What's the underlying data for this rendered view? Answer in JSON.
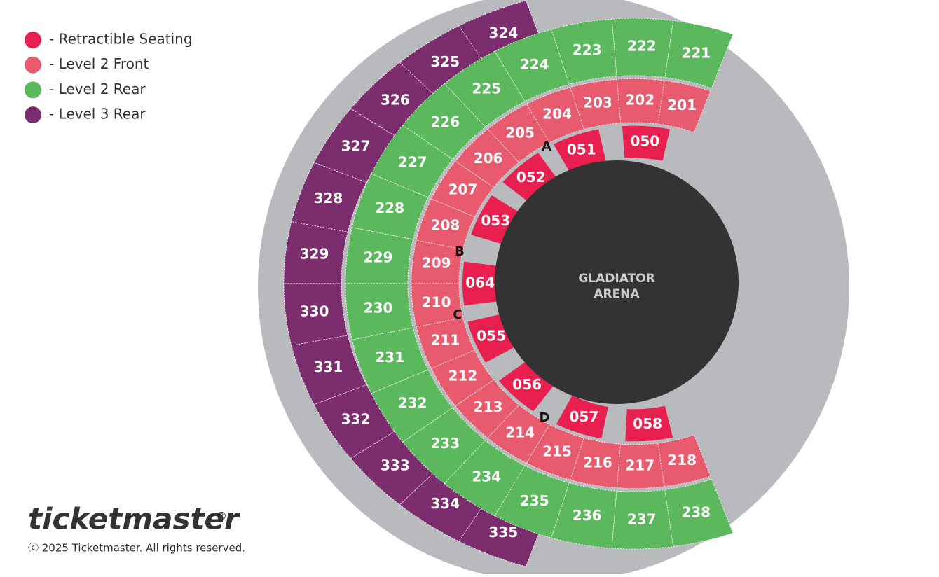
{
  "legend": [
    {
      "label": "- Retractible Seating",
      "color": "#e8204f"
    },
    {
      "label": "- Level 2 Front",
      "color": "#e85a6e"
    },
    {
      "label": "- Level 2 Rear",
      "color": "#5cb85c"
    },
    {
      "label": "- Level 3 Rear",
      "color": "#7b2d6e"
    }
  ],
  "arena": {
    "lines": [
      "GLADIATOR",
      "ARENA"
    ]
  },
  "sections": {
    "retractible": [
      "050",
      "051",
      "052",
      "053",
      "064",
      "055",
      "056",
      "057",
      "058"
    ],
    "level2_front": [
      "201",
      "202",
      "203",
      "204",
      "205",
      "206",
      "207",
      "208",
      "209",
      "210",
      "211",
      "212",
      "213",
      "214",
      "215",
      "216",
      "217",
      "218"
    ],
    "level2_rear": [
      "221",
      "222",
      "223",
      "224",
      "225",
      "226",
      "227",
      "228",
      "229",
      "230",
      "231",
      "232",
      "233",
      "234",
      "235",
      "236",
      "237",
      "238"
    ],
    "level3_rear": [
      "324",
      "325",
      "326",
      "327",
      "328",
      "329",
      "330",
      "331",
      "332",
      "333",
      "334",
      "335"
    ]
  },
  "aisles": [
    "A",
    "B",
    "C",
    "D"
  ],
  "logo": "ticketmaster",
  "logo_mark": "®",
  "copyright": "ⓒ 2025 Ticketmaster. All rights reserved."
}
